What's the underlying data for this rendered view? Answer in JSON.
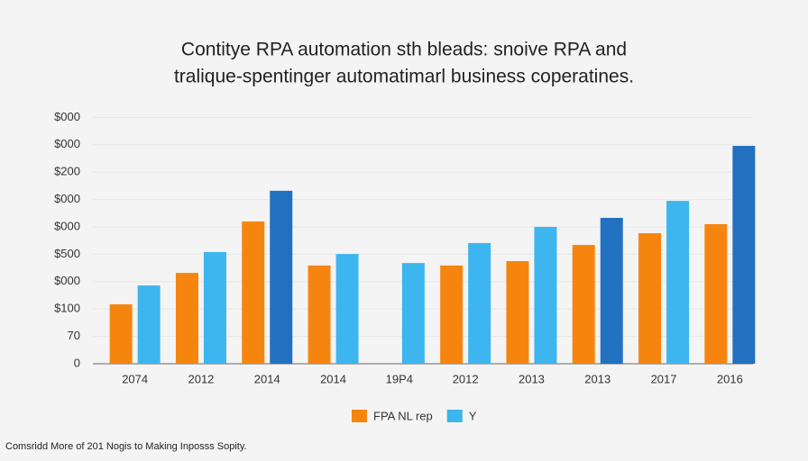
{
  "chart_data": {
    "type": "bar",
    "title": [
      "Contitye RPA automation sth bleads: snoive RPA and",
      "tralique-spentinger automatimarl business coperatines."
    ],
    "categories": [
      "2074",
      "2012",
      "2014",
      "2014",
      "19P4",
      "2012",
      "2013",
      "2013",
      "2017",
      "2016"
    ],
    "series": [
      {
        "name": "FPA NL rep",
        "color": "#f5850f",
        "values": [
          2.17,
          3.32,
          5.2,
          3.59,
          null,
          3.59,
          3.75,
          4.34,
          4.77,
          5.1
        ]
      },
      {
        "name": "Y",
        "color": "#3db5ee",
        "colors": [
          "#3db5ee",
          "#3db5ee",
          "#2271c0",
          "#3db5ee",
          "#3db5ee",
          "#3db5ee",
          "#3db5ee",
          "#2271c0",
          "#3db5ee",
          "#2271c0"
        ],
        "values": [
          2.86,
          4.08,
          6.32,
          4.01,
          3.68,
          4.41,
          5.0,
          5.33,
          5.95,
          7.96
        ]
      }
    ],
    "ylim": [
      0,
      9
    ],
    "yticks": [
      0,
      {
        "value": 1,
        "label": "70"
      },
      {
        "value": 2,
        "label": "$100"
      },
      {
        "value": 3,
        "label": "$000"
      },
      {
        "value": 4,
        "label": "$500"
      },
      {
        "value": 5,
        "label": "$000"
      },
      {
        "value": 6,
        "label": "$000"
      },
      {
        "value": 7,
        "label": "$200"
      },
      {
        "value": 8,
        "label": "$000"
      },
      {
        "value": 9,
        "label": "$000"
      }
    ],
    "grid": true,
    "legend": "bottom",
    "footnote": "Comsridd More of 201 Nogis to Making Inposss Sopity."
  }
}
